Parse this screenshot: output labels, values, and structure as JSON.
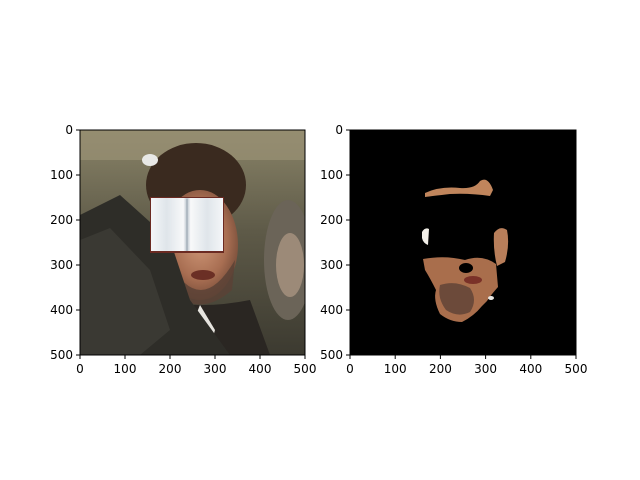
{
  "chart_data": [
    {
      "type": "image",
      "title": "",
      "xlabel": "",
      "ylabel": "",
      "xlim": [
        0,
        500
      ],
      "ylim": [
        500,
        0
      ],
      "xticks": [
        "0",
        "100",
        "200",
        "300",
        "400",
        "500"
      ],
      "yticks": [
        "0",
        "100",
        "200",
        "300",
        "400",
        "500"
      ],
      "content": "photo of a man with dark curly hair; a white open-book sticker covers the eyes",
      "overlay_box": {
        "x": [
          155,
          320
        ],
        "y": [
          150,
          270
        ]
      }
    },
    {
      "type": "image",
      "title": "",
      "xlabel": "",
      "ylabel": "",
      "xlim": [
        0,
        500
      ],
      "ylim": [
        500,
        0
      ],
      "xticks": [
        "0",
        "100",
        "200",
        "300",
        "400",
        "500"
      ],
      "yticks": [
        "0",
        "100",
        "200",
        "300",
        "400",
        "500"
      ],
      "content": "skin segmentation mask: black background with skin-colored facial regions (forehead, cheeks, chin) visible",
      "background": "#000000"
    }
  ]
}
